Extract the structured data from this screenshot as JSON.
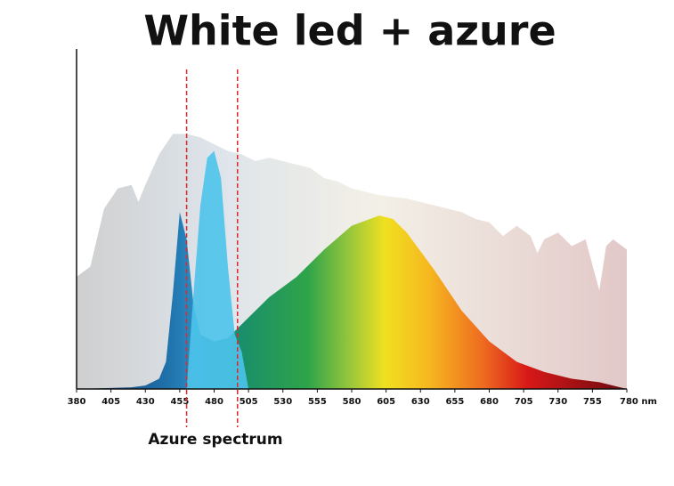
{
  "chart_data": {
    "type": "area",
    "title": "White led + azure",
    "xlim": [
      380,
      780
    ],
    "ylim": [
      0,
      100
    ],
    "xticks": [
      380,
      405,
      430,
      455,
      480,
      505,
      530,
      555,
      580,
      605,
      630,
      655,
      680,
      705,
      730,
      755,
      {
        "value": 780,
        "label": "780 nm"
      }
    ],
    "series": [
      {
        "color": "#d6d6d6",
        "x": [
          380,
          390,
          400,
          410,
          420,
          425,
          430,
          440,
          450,
          460,
          470,
          480,
          490,
          500,
          510,
          520,
          530,
          540,
          550,
          560,
          570,
          580,
          590,
          600,
          620,
          640,
          660,
          670,
          680,
          690,
          700,
          710,
          715,
          720,
          730,
          740,
          750,
          760,
          765,
          770,
          780
        ],
        "values": [
          33,
          36,
          53,
          59,
          60,
          55,
          60,
          69,
          75,
          75,
          74,
          72,
          70,
          69,
          67,
          68,
          67,
          66,
          65,
          62,
          61,
          59,
          58,
          57,
          56,
          54,
          52,
          50,
          49,
          45,
          48,
          45,
          40,
          44,
          46,
          42,
          44,
          29,
          42,
          44,
          41
        ]
      },
      {
        "x": [
          380,
          420,
          430,
          440,
          445,
          450,
          455,
          460,
          465,
          470,
          480,
          490,
          500,
          520,
          540,
          560,
          580,
          600,
          610,
          620,
          640,
          660,
          680,
          700,
          720,
          740,
          760,
          780
        ],
        "values": [
          0,
          0.5,
          1,
          3,
          8,
          28,
          52,
          44,
          25,
          16,
          14,
          15,
          19,
          27,
          33,
          41,
          48,
          51,
          50,
          46,
          35,
          23,
          14,
          8,
          5,
          3,
          2,
          0
        ]
      },
      {
        "color": "#4cc3ea",
        "x": [
          460,
          465,
          470,
          475,
          480,
          485,
          490,
          495,
          500,
          505
        ],
        "values": [
          0,
          28,
          54,
          68,
          70,
          62,
          36,
          16,
          11,
          0
        ]
      }
    ],
    "highlight": {
      "label": "Azure spectrum",
      "range": [
        460,
        497
      ],
      "color": "#e0282e"
    }
  }
}
